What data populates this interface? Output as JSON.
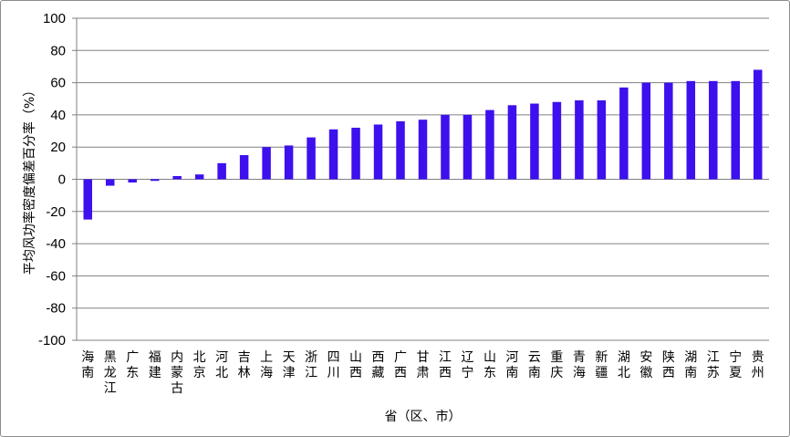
{
  "chart_data": {
    "type": "bar",
    "title": "",
    "xlabel": "省（区、市）",
    "ylabel": "平均风功率密度偏差百分率（%）",
    "ylim": [
      -100,
      100
    ],
    "yticks": [
      "100",
      "80",
      "60",
      "40",
      "20",
      "0",
      "-20",
      "-40",
      "-60",
      "-80",
      "-100"
    ],
    "grid": true,
    "bar_color": "#3d10ee",
    "categories": [
      "海南",
      "黑龙江",
      "广东",
      "福建",
      "内蒙古",
      "北京",
      "河北",
      "吉林",
      "上海",
      "天津",
      "浙江",
      "四川",
      "山西",
      "西藏",
      "广西",
      "甘肃",
      "江西",
      "辽宁",
      "山东",
      "河南",
      "云南",
      "重庆",
      "青海",
      "新疆",
      "湖北",
      "安徽",
      "陕西",
      "湖南",
      "江苏",
      "宁夏",
      "贵州"
    ],
    "values": [
      -25,
      -4,
      -2,
      -1,
      2,
      3,
      10,
      15,
      20,
      21,
      26,
      31,
      32,
      34,
      36,
      37,
      40,
      40,
      43,
      46,
      47,
      48,
      49,
      49,
      57,
      60,
      60,
      61,
      61,
      61,
      68
    ]
  }
}
